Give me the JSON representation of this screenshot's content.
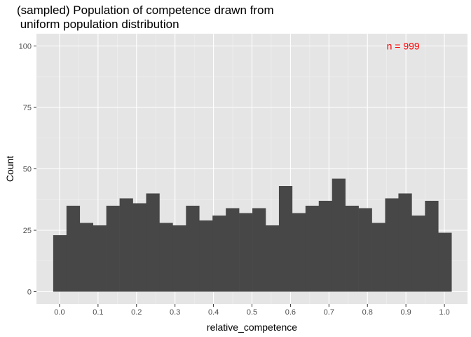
{
  "chart_data": {
    "type": "bar",
    "subtype": "histogram",
    "title_lines": [
      "(sampled) Population of competence drawn from",
      " uniform population distribution"
    ],
    "xlabel": "relative_competence",
    "ylabel": "Count",
    "bin_width": 0.0345,
    "bin_start": -0.0165,
    "values": [
      23,
      35,
      28,
      27,
      35,
      38,
      36,
      40,
      28,
      27,
      35,
      29,
      31,
      34,
      32,
      34,
      27,
      43,
      32,
      35,
      37,
      46,
      35,
      34,
      28,
      38,
      40,
      31,
      37,
      24
    ],
    "xlim": [
      -0.06,
      1.06
    ],
    "ylim": [
      -5,
      105
    ],
    "x_ticks": [
      0.0,
      0.1,
      0.2,
      0.3,
      0.4,
      0.5,
      0.6,
      0.7,
      0.8,
      0.9,
      1.0
    ],
    "x_tick_labels": [
      "0.0",
      "0.1",
      "0.2",
      "0.3",
      "0.4",
      "0.5",
      "0.6",
      "0.7",
      "0.8",
      "0.9",
      "1.0"
    ],
    "y_ticks": [
      0,
      25,
      50,
      75,
      100
    ],
    "y_tick_labels": [
      "0",
      "25",
      "50",
      "75",
      "100"
    ],
    "annotation": {
      "text": "n = 999",
      "x": 0.9,
      "y": 100,
      "color": "#ff0000"
    },
    "bar_color": "#474747",
    "panel_background": "#e5e5e5",
    "grid": true
  }
}
